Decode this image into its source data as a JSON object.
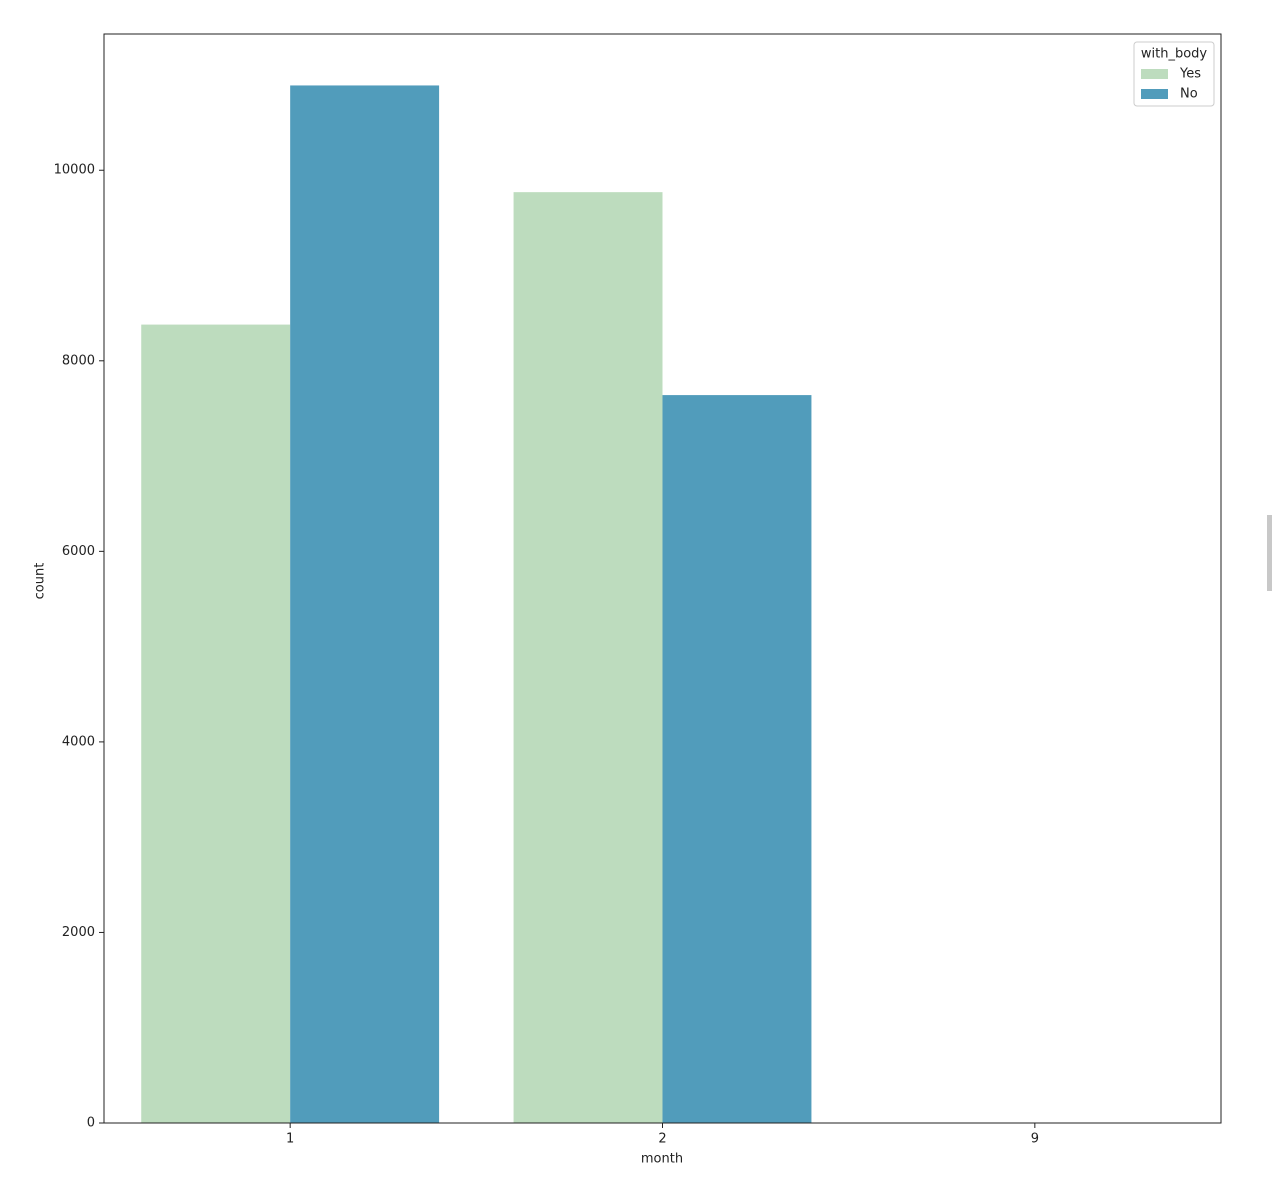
{
  "chart_data": {
    "type": "bar",
    "x_label": "month",
    "y_label": "count",
    "categories": [
      "1",
      "2",
      "9"
    ],
    "series": [
      {
        "name": "Yes",
        "color": "#bddcbe",
        "values": [
          8380,
          9770,
          0
        ]
      },
      {
        "name": "No",
        "color": "#519cbb",
        "values": [
          10890,
          7640,
          0
        ]
      }
    ],
    "ylim": [
      0,
      11430
    ],
    "yticks": [
      0,
      2000,
      4000,
      6000,
      8000,
      10000
    ],
    "legend_title": "with_body",
    "legend": "upper right",
    "grid": false
  }
}
